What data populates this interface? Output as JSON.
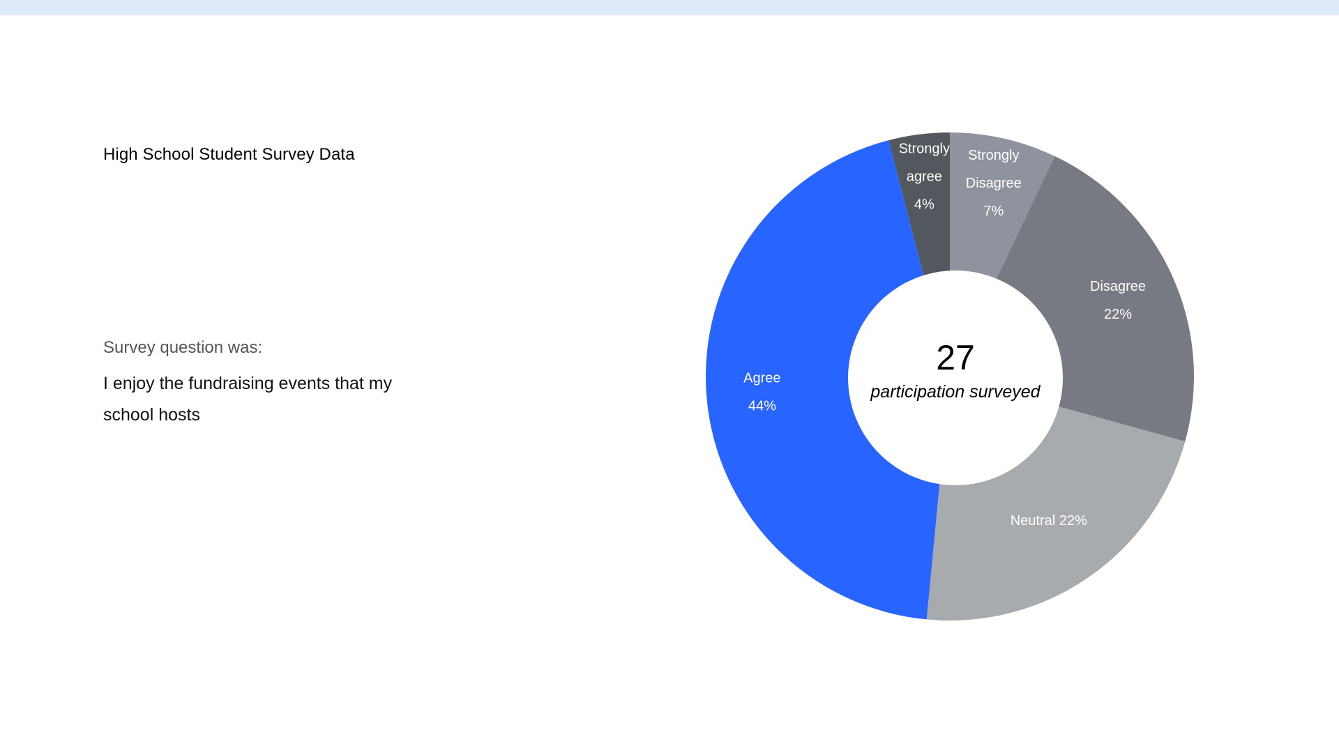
{
  "heading": "High School Student Survey Data",
  "question_label": "Survey question was:",
  "question_text": "I enjoy the fundraising events that my school hosts",
  "chart_data": {
    "type": "pie",
    "variant": "donut",
    "center_value": "27",
    "center_caption": "participation surveyed",
    "slices": [
      {
        "key": "strongly-disagree",
        "lines": [
          "Strongly",
          "Disagree",
          "7%"
        ],
        "value": 7,
        "color": "#8e939e"
      },
      {
        "key": "disagree",
        "lines": [
          "Disagree",
          "22%"
        ],
        "value": 22,
        "color": "#777a83"
      },
      {
        "key": "neutral",
        "lines": [
          "Neutral 22%"
        ],
        "value": 22,
        "color": "#a7abae"
      },
      {
        "key": "agree",
        "lines": [
          "Agree",
          "44%"
        ],
        "value": 44,
        "color": "#2864ff"
      },
      {
        "key": "strongly-agree",
        "lines": [
          "Strongly",
          "agree",
          "4%"
        ],
        "value": 4,
        "color": "#53575e"
      }
    ]
  }
}
